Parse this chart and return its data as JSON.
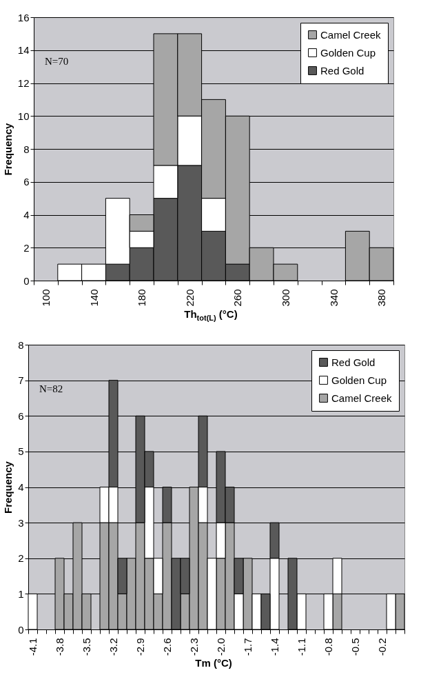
{
  "chart_data": [
    {
      "type": "bar",
      "stacked": true,
      "xlabel": "Th$_{tot(L)}$ (°C)",
      "ylabel": "Frequency",
      "categories": [
        "100",
        null,
        "140",
        null,
        "180",
        null,
        "220",
        null,
        "260",
        null,
        "300",
        null,
        "340",
        null,
        "380"
      ],
      "series": [
        {
          "name": "Red Gold",
          "color": "#595959",
          "values": [
            0,
            0,
            0,
            1,
            2,
            5,
            7,
            3,
            1,
            0,
            0,
            0,
            0,
            0,
            0
          ]
        },
        {
          "name": "Golden Cup",
          "color": "#ffffff",
          "values": [
            0,
            1,
            1,
            4,
            1,
            2,
            3,
            2,
            0,
            0,
            0,
            0,
            0,
            0,
            0
          ]
        },
        {
          "name": "Camel Creek",
          "color": "#a6a6a6",
          "values": [
            0,
            0,
            0,
            0,
            1,
            8,
            5,
            6,
            9,
            2,
            1,
            0,
            0,
            3,
            2
          ]
        }
      ],
      "ylim": [
        0,
        16
      ],
      "yticks": [
        0,
        2,
        4,
        6,
        8,
        10,
        12,
        14,
        16
      ],
      "grid": "y",
      "legend": "top right",
      "annotations": [
        "N=70"
      ]
    },
    {
      "type": "bar",
      "stacked": true,
      "xlabel": "Tm (°C)",
      "ylabel": "Frequency",
      "categories": [
        "-4.1",
        null,
        null,
        "-3.8",
        null,
        null,
        "-3.5",
        null,
        null,
        "-3.2",
        null,
        null,
        "-2.9",
        null,
        null,
        "-2.6",
        null,
        null,
        "-2.3",
        null,
        null,
        "-2.0",
        null,
        null,
        "-1.7",
        null,
        null,
        "-1.4",
        null,
        null,
        "-1.1",
        null,
        null,
        "-0.8",
        null,
        null,
        "-0.5",
        null,
        null,
        "-0.2",
        null,
        null
      ],
      "series": [
        {
          "name": "Camel Creek",
          "color": "#a6a6a6",
          "values": [
            0,
            0,
            0,
            2,
            1,
            3,
            1,
            0,
            3,
            3,
            1,
            2,
            3,
            2,
            1,
            3,
            0,
            1,
            4,
            3,
            0,
            2,
            3,
            0,
            2,
            0,
            0,
            0,
            0,
            0,
            0,
            0,
            0,
            0,
            1,
            0,
            0,
            0,
            0,
            0,
            0,
            1
          ]
        },
        {
          "name": "Golden Cup",
          "color": "#ffffff",
          "values": [
            1,
            0,
            0,
            0,
            0,
            0,
            0,
            0,
            1,
            1,
            0,
            0,
            0,
            2,
            1,
            0,
            0,
            0,
            0,
            1,
            2,
            1,
            0,
            1,
            0,
            1,
            0,
            2,
            0,
            0,
            1,
            0,
            0,
            1,
            1,
            0,
            0,
            0,
            0,
            0,
            1,
            0
          ]
        },
        {
          "name": "Red Gold",
          "color": "#595959",
          "values": [
            0,
            0,
            0,
            0,
            0,
            0,
            0,
            0,
            0,
            3,
            1,
            0,
            3,
            1,
            0,
            1,
            2,
            1,
            0,
            2,
            0,
            2,
            1,
            1,
            0,
            0,
            1,
            1,
            0,
            2,
            0,
            0,
            0,
            0,
            0,
            0,
            0,
            0,
            0,
            0,
            0,
            0
          ]
        }
      ],
      "ylim": [
        0,
        8
      ],
      "yticks": [
        0,
        1,
        2,
        3,
        4,
        5,
        6,
        7,
        8
      ],
      "grid": "y",
      "legend": "top right",
      "annotations": [
        "N=82"
      ]
    }
  ]
}
